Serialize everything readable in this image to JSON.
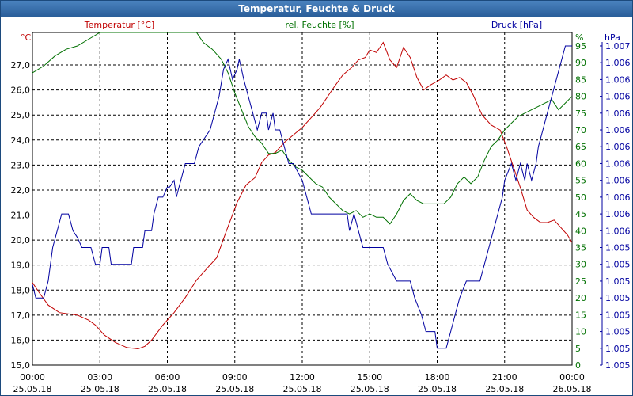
{
  "window": {
    "title": "Temperatur, Feuchte & Druck"
  },
  "chart_data": {
    "type": "line",
    "title": "Temperatur, Feuchte & Druck",
    "colors": {
      "temperature": "#c00000",
      "humidity": "#007000",
      "pressure": "#0000a0",
      "grid": "#000000",
      "background": "#ffffff"
    },
    "grid": true,
    "x_ticks": [
      {
        "time": "00:00",
        "date": "25.05.18"
      },
      {
        "time": "03:00",
        "date": "25.05.18"
      },
      {
        "time": "06:00",
        "date": "25.05.18"
      },
      {
        "time": "09:00",
        "date": "25.05.18"
      },
      {
        "time": "12:00",
        "date": "25.05.18"
      },
      {
        "time": "15:00",
        "date": "25.05.18"
      },
      {
        "time": "18:00",
        "date": "25.05.18"
      },
      {
        "time": "21:00",
        "date": "25.05.18"
      },
      {
        "time": "00:00",
        "date": "26.05.18"
      }
    ],
    "axes": {
      "temperature": {
        "label": "Temperatur [°C]",
        "unit": "°C",
        "range": [
          15,
          28.3
        ],
        "ticks": [
          "15,0",
          "16,0",
          "17,0",
          "18,0",
          "19,0",
          "20,0",
          "21,0",
          "22,0",
          "23,0",
          "24,0",
          "25,0",
          "26,0",
          "27,0"
        ]
      },
      "humidity": {
        "label": "rel. Feuchte [%]",
        "unit": "%",
        "range": [
          0,
          99
        ],
        "ticks": [
          "0",
          "5",
          "10",
          "15",
          "20",
          "25",
          "30",
          "35",
          "40",
          "45",
          "50",
          "55",
          "60",
          "65",
          "70",
          "75",
          "80",
          "85",
          "90",
          "95"
        ]
      },
      "pressure": {
        "label": "Druck [hPa]",
        "unit": "hPa",
        "ticks": [
          "1.005",
          "1.005",
          "1.005",
          "1.005",
          "1.005",
          "1.005",
          "1.005",
          "1.005",
          "1.006",
          "1.006",
          "1.006",
          "1.006",
          "1.006",
          "1.006",
          "1.006",
          "1.006",
          "1.006",
          "1.006",
          "1.006",
          "1.007"
        ]
      }
    },
    "series": [
      {
        "name": "Temperatur [°C]",
        "axis": "temperature",
        "points": [
          [
            0,
            18.3
          ],
          [
            0.3,
            17.9
          ],
          [
            0.7,
            17.4
          ],
          [
            1.2,
            17.1
          ],
          [
            2,
            17.0
          ],
          [
            2.5,
            16.8
          ],
          [
            2.8,
            16.6
          ],
          [
            3.2,
            16.2
          ],
          [
            3.7,
            15.9
          ],
          [
            4.2,
            15.7
          ],
          [
            4.7,
            15.65
          ],
          [
            5.0,
            15.75
          ],
          [
            5.3,
            16.0
          ],
          [
            5.8,
            16.6
          ],
          [
            6.3,
            17.1
          ],
          [
            6.8,
            17.7
          ],
          [
            7.3,
            18.4
          ],
          [
            7.8,
            18.9
          ],
          [
            8.2,
            19.3
          ],
          [
            8.6,
            20.3
          ],
          [
            9.1,
            21.5
          ],
          [
            9.5,
            22.2
          ],
          [
            9.9,
            22.5
          ],
          [
            10.2,
            23.1
          ],
          [
            10.5,
            23.4
          ],
          [
            10.8,
            23.5
          ],
          [
            11.2,
            23.9
          ],
          [
            11.6,
            24.2
          ],
          [
            12.0,
            24.5
          ],
          [
            12.4,
            24.9
          ],
          [
            12.8,
            25.3
          ],
          [
            13.1,
            25.7
          ],
          [
            13.4,
            26.1
          ],
          [
            13.8,
            26.6
          ],
          [
            14.2,
            26.9
          ],
          [
            14.5,
            27.2
          ],
          [
            14.8,
            27.3
          ],
          [
            15.0,
            27.6
          ],
          [
            15.3,
            27.5
          ],
          [
            15.6,
            27.9
          ],
          [
            15.9,
            27.2
          ],
          [
            16.2,
            26.9
          ],
          [
            16.5,
            27.7
          ],
          [
            16.8,
            27.3
          ],
          [
            17.1,
            26.5
          ],
          [
            17.4,
            26.0
          ],
          [
            17.7,
            26.2
          ],
          [
            18.1,
            26.4
          ],
          [
            18.4,
            26.6
          ],
          [
            18.7,
            26.4
          ],
          [
            19.0,
            26.5
          ],
          [
            19.3,
            26.3
          ],
          [
            19.6,
            25.8
          ],
          [
            20.0,
            25.0
          ],
          [
            20.4,
            24.6
          ],
          [
            20.8,
            24.4
          ],
          [
            21.1,
            23.7
          ],
          [
            21.4,
            22.9
          ],
          [
            21.7,
            22.1
          ],
          [
            22.0,
            21.2
          ],
          [
            22.3,
            20.9
          ],
          [
            22.6,
            20.7
          ],
          [
            22.9,
            20.7
          ],
          [
            23.2,
            20.8
          ],
          [
            23.5,
            20.5
          ],
          [
            23.8,
            20.2
          ],
          [
            24.0,
            19.9
          ]
        ]
      },
      {
        "name": "rel. Feuchte [%]",
        "axis": "humidity",
        "points": [
          [
            0,
            87
          ],
          [
            0.5,
            89
          ],
          [
            1.0,
            92
          ],
          [
            1.5,
            94
          ],
          [
            2.0,
            95
          ],
          [
            2.5,
            97
          ],
          [
            3.0,
            99
          ],
          [
            7.3,
            99
          ],
          [
            7.6,
            96
          ],
          [
            8.0,
            94
          ],
          [
            8.4,
            91
          ],
          [
            8.7,
            87
          ],
          [
            9.0,
            81
          ],
          [
            9.3,
            76
          ],
          [
            9.6,
            71
          ],
          [
            9.9,
            68
          ],
          [
            10.2,
            66
          ],
          [
            10.5,
            63
          ],
          [
            10.8,
            63
          ],
          [
            11.1,
            64
          ],
          [
            11.4,
            61
          ],
          [
            11.7,
            59
          ],
          [
            12.0,
            58
          ],
          [
            12.3,
            56
          ],
          [
            12.6,
            54
          ],
          [
            12.9,
            53
          ],
          [
            13.2,
            50
          ],
          [
            13.5,
            48
          ],
          [
            13.8,
            46
          ],
          [
            14.1,
            45
          ],
          [
            14.4,
            46
          ],
          [
            14.7,
            44
          ],
          [
            15.0,
            45
          ],
          [
            15.3,
            44
          ],
          [
            15.6,
            44
          ],
          [
            15.9,
            42
          ],
          [
            16.2,
            45
          ],
          [
            16.5,
            49
          ],
          [
            16.8,
            51
          ],
          [
            17.1,
            49
          ],
          [
            17.4,
            48
          ],
          [
            17.7,
            48
          ],
          [
            18.0,
            48
          ],
          [
            18.3,
            48
          ],
          [
            18.6,
            50
          ],
          [
            18.9,
            54
          ],
          [
            19.2,
            56
          ],
          [
            19.5,
            54
          ],
          [
            19.8,
            56
          ],
          [
            20.1,
            61
          ],
          [
            20.4,
            65
          ],
          [
            20.7,
            67
          ],
          [
            21.0,
            70
          ],
          [
            21.3,
            72
          ],
          [
            21.6,
            74
          ],
          [
            21.9,
            75
          ],
          [
            22.2,
            76
          ],
          [
            22.5,
            77
          ],
          [
            22.8,
            78
          ],
          [
            23.1,
            79
          ],
          [
            23.4,
            76
          ],
          [
            23.7,
            78
          ],
          [
            24.0,
            80
          ]
        ]
      },
      {
        "name": "Druck [hPa]",
        "axis": "pressure",
        "points": [
          [
            0,
            24
          ],
          [
            0.15,
            20
          ],
          [
            0.5,
            20
          ],
          [
            0.7,
            25
          ],
          [
            0.9,
            35
          ],
          [
            1.1,
            40
          ],
          [
            1.3,
            45
          ],
          [
            1.6,
            45
          ],
          [
            1.8,
            40
          ],
          [
            2.0,
            38
          ],
          [
            2.2,
            35
          ],
          [
            2.6,
            35
          ],
          [
            2.8,
            30
          ],
          [
            3.0,
            30
          ],
          [
            3.1,
            35
          ],
          [
            3.4,
            35
          ],
          [
            3.5,
            30
          ],
          [
            4.4,
            30
          ],
          [
            4.5,
            35
          ],
          [
            4.9,
            35
          ],
          [
            5.0,
            40
          ],
          [
            5.3,
            40
          ],
          [
            5.4,
            45
          ],
          [
            5.6,
            50
          ],
          [
            5.8,
            50
          ],
          [
            6.0,
            53
          ],
          [
            6.1,
            53
          ],
          [
            6.3,
            55
          ],
          [
            6.4,
            50
          ],
          [
            6.6,
            55
          ],
          [
            6.8,
            60
          ],
          [
            7.2,
            60
          ],
          [
            7.4,
            65
          ],
          [
            7.7,
            68
          ],
          [
            7.9,
            70
          ],
          [
            8.1,
            75
          ],
          [
            8.3,
            80
          ],
          [
            8.5,
            88
          ],
          [
            8.7,
            91
          ],
          [
            8.9,
            85
          ],
          [
            9.1,
            88
          ],
          [
            9.2,
            91
          ],
          [
            9.4,
            85
          ],
          [
            9.6,
            80
          ],
          [
            9.8,
            75
          ],
          [
            10.0,
            70
          ],
          [
            10.2,
            75
          ],
          [
            10.4,
            75
          ],
          [
            10.5,
            70
          ],
          [
            10.7,
            75
          ],
          [
            10.8,
            70
          ],
          [
            11.0,
            70
          ],
          [
            11.2,
            65
          ],
          [
            11.4,
            60
          ],
          [
            11.6,
            60
          ],
          [
            12.0,
            55
          ],
          [
            12.2,
            50
          ],
          [
            12.4,
            45
          ],
          [
            13.2,
            45
          ],
          [
            13.4,
            45
          ],
          [
            14.0,
            45
          ],
          [
            14.1,
            40
          ],
          [
            14.3,
            45
          ],
          [
            14.5,
            40
          ],
          [
            14.7,
            35
          ],
          [
            15.6,
            35
          ],
          [
            15.8,
            30
          ],
          [
            16.2,
            25
          ],
          [
            16.8,
            25
          ],
          [
            17.0,
            20
          ],
          [
            17.3,
            15
          ],
          [
            17.5,
            10
          ],
          [
            17.9,
            10
          ],
          [
            18.0,
            5
          ],
          [
            18.4,
            5
          ],
          [
            18.6,
            10
          ],
          [
            18.8,
            15
          ],
          [
            19.0,
            20
          ],
          [
            19.3,
            25
          ],
          [
            19.9,
            25
          ],
          [
            20.1,
            30
          ],
          [
            20.3,
            35
          ],
          [
            20.5,
            40
          ],
          [
            20.7,
            45
          ],
          [
            20.9,
            50
          ],
          [
            21.0,
            55
          ],
          [
            21.3,
            60
          ],
          [
            21.5,
            55
          ],
          [
            21.7,
            60
          ],
          [
            21.9,
            55
          ],
          [
            22.0,
            60
          ],
          [
            22.2,
            55
          ],
          [
            22.4,
            60
          ],
          [
            22.5,
            65
          ],
          [
            22.7,
            70
          ],
          [
            22.9,
            75
          ],
          [
            23.1,
            80
          ],
          [
            23.3,
            85
          ],
          [
            23.5,
            90
          ],
          [
            23.7,
            95
          ],
          [
            23.8,
            95
          ],
          [
            24.0,
            95
          ]
        ]
      }
    ]
  }
}
